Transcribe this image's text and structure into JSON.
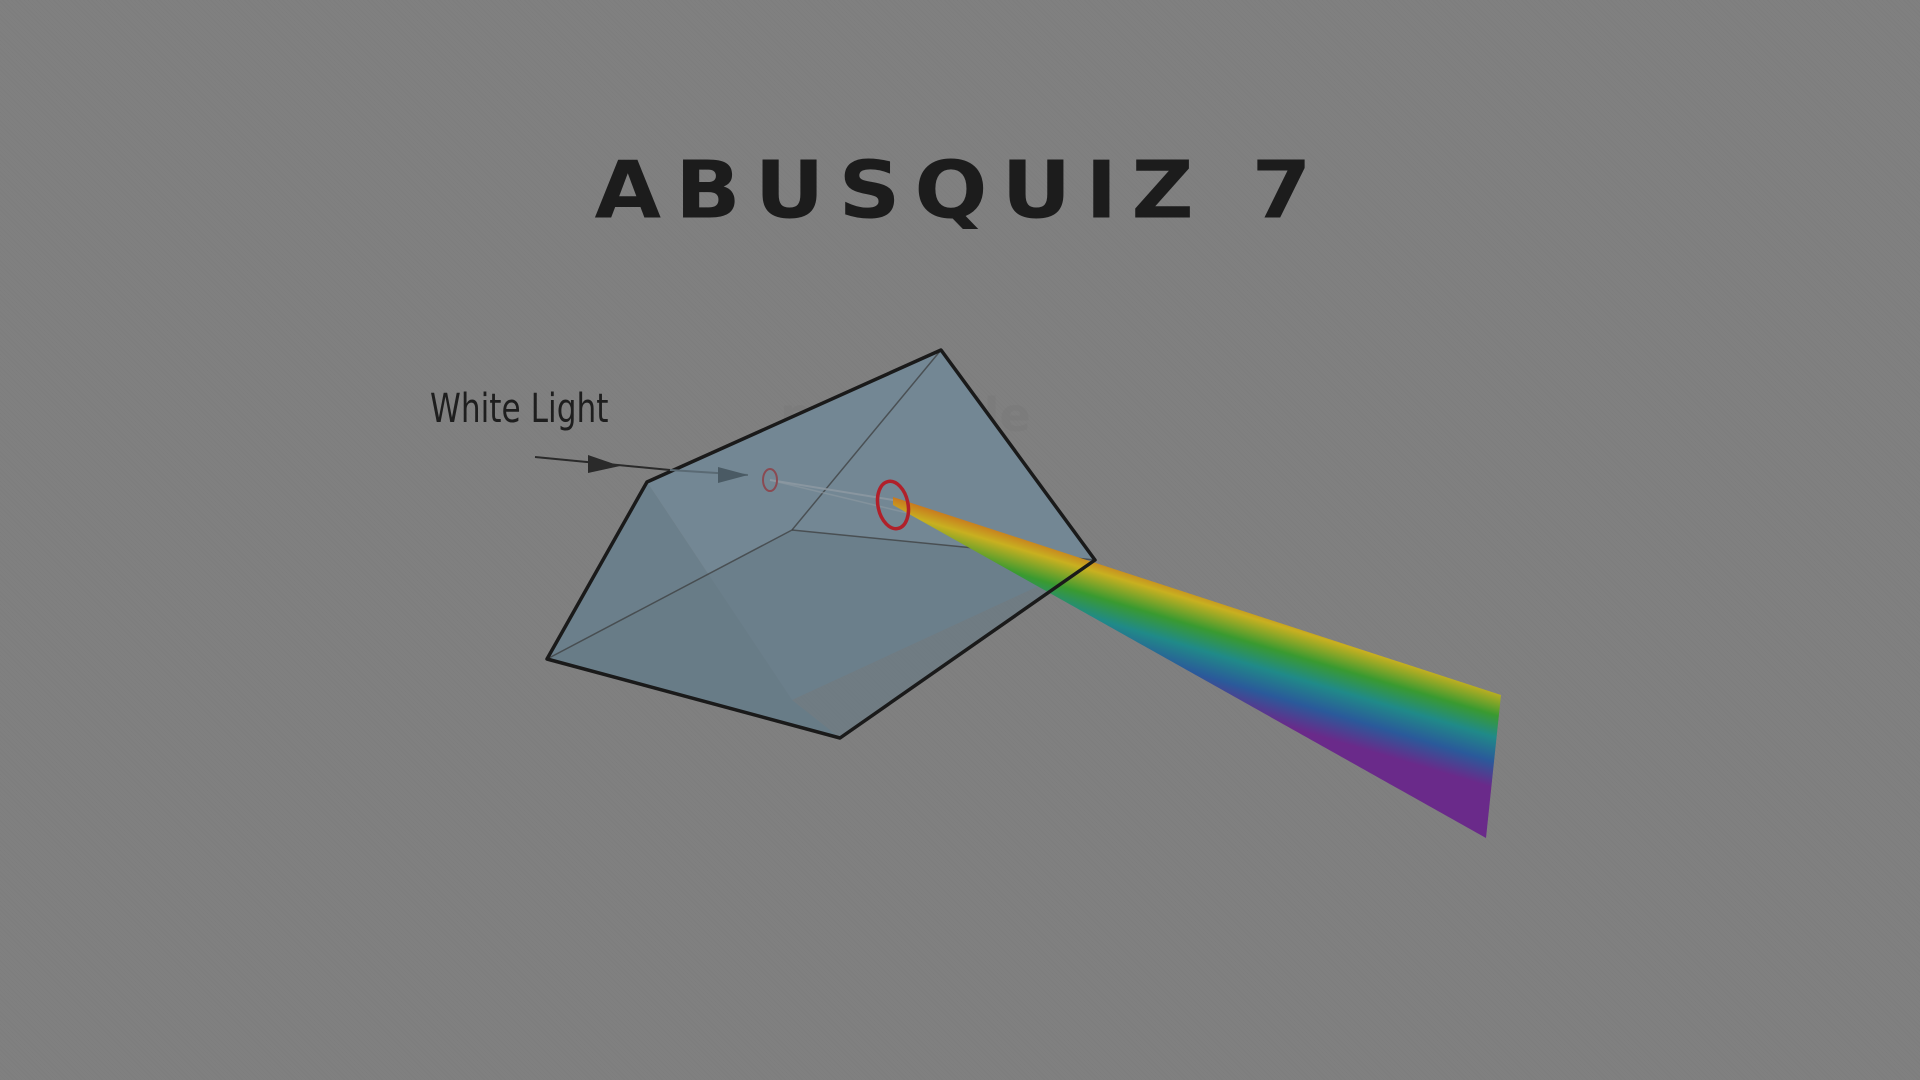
{
  "title": "ABUSQUIZ 7",
  "diagram": {
    "label": "White Light",
    "watermark": "prism_file"
  },
  "colors": {
    "background": "#808080",
    "prism_fill": "#6f8390",
    "outline": "#1a1a1a",
    "ring": "#b0202a",
    "spectrum": [
      "#b02a2a",
      "#c85a1e",
      "#c8b020",
      "#3a9a30",
      "#208a88",
      "#2a5a9a",
      "#6a2a8a"
    ]
  }
}
